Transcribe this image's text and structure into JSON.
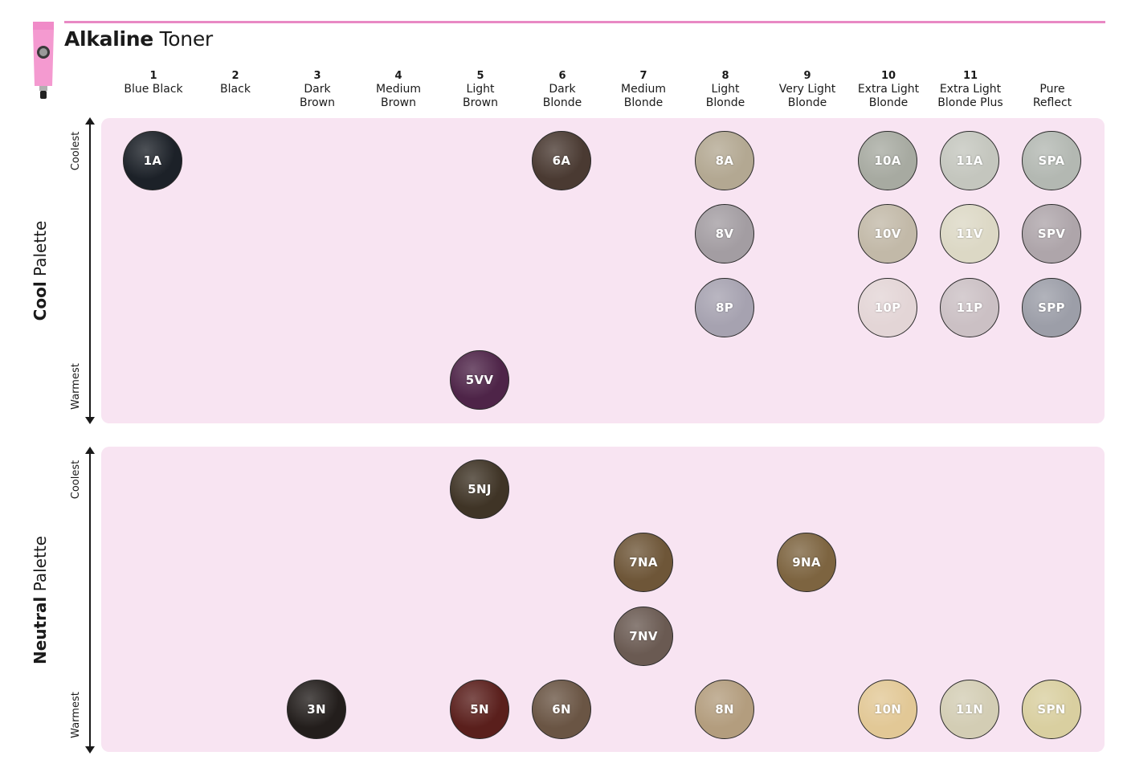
{
  "header": {
    "title_bold": "Alkaline",
    "title_light": "Toner"
  },
  "columns": [
    {
      "num": "1",
      "l1": "Blue Black",
      "l2": ""
    },
    {
      "num": "2",
      "l1": "Black",
      "l2": ""
    },
    {
      "num": "3",
      "l1": "Dark",
      "l2": "Brown"
    },
    {
      "num": "4",
      "l1": "Medium",
      "l2": "Brown"
    },
    {
      "num": "5",
      "l1": "Light",
      "l2": "Brown"
    },
    {
      "num": "6",
      "l1": "Dark",
      "l2": "Blonde"
    },
    {
      "num": "7",
      "l1": "Medium",
      "l2": "Blonde"
    },
    {
      "num": "8",
      "l1": "Light",
      "l2": "Blonde"
    },
    {
      "num": "9",
      "l1": "Very Light",
      "l2": "Blonde"
    },
    {
      "num": "10",
      "l1": "Extra Light",
      "l2": "Blonde"
    },
    {
      "num": "11",
      "l1": "Extra Light",
      "l2": "Blonde Plus"
    },
    {
      "num": "",
      "l1": "Pure",
      "l2": "Reflect"
    }
  ],
  "axis": {
    "coolest": "Coolest",
    "warmest": "Warmest"
  },
  "cool_palette": {
    "label_bold": "Cool",
    "label_light": "Palette",
    "swatches": [
      {
        "label": "1A",
        "color": "#1c2128"
      },
      {
        "label": "6A",
        "color": "#4a3a32"
      },
      {
        "label": "8A",
        "color": "#b3a892"
      },
      {
        "label": "10A",
        "color": "#a7aaa1"
      },
      {
        "label": "11A",
        "color": "#c4c6be"
      },
      {
        "label": "SPA",
        "color": "#b3b8b2"
      },
      {
        "label": "8V",
        "color": "#a39da2"
      },
      {
        "label": "10V",
        "color": "#c2b9a8"
      },
      {
        "label": "11V",
        "color": "#dcd8c5"
      },
      {
        "label": "SPV",
        "color": "#aea5aa"
      },
      {
        "label": "8P",
        "color": "#a6a2b0"
      },
      {
        "label": "10P",
        "color": "#e3d5d6"
      },
      {
        "label": "11P",
        "color": "#cbc0c4"
      },
      {
        "label": "SPP",
        "color": "#9c9ea8"
      },
      {
        "label": "5VV",
        "color": "#4e2448"
      }
    ]
  },
  "neutral_palette": {
    "label_bold": "Neutral",
    "label_light": "Palette",
    "swatches": [
      {
        "label": "5NJ",
        "color": "#3f3426"
      },
      {
        "label": "7NA",
        "color": "#6e5638"
      },
      {
        "label": "9NA",
        "color": "#7d6440"
      },
      {
        "label": "7NV",
        "color": "#6a5a52"
      },
      {
        "label": "3N",
        "color": "#231e1c"
      },
      {
        "label": "5N",
        "color": "#5a1f1c"
      },
      {
        "label": "6N",
        "color": "#6a5544"
      },
      {
        "label": "8N",
        "color": "#b39d7e"
      },
      {
        "label": "10N",
        "color": "#e2c896"
      },
      {
        "label": "11N",
        "color": "#d3cdb4"
      },
      {
        "label": "SPN",
        "color": "#d9cfa0"
      }
    ]
  }
}
